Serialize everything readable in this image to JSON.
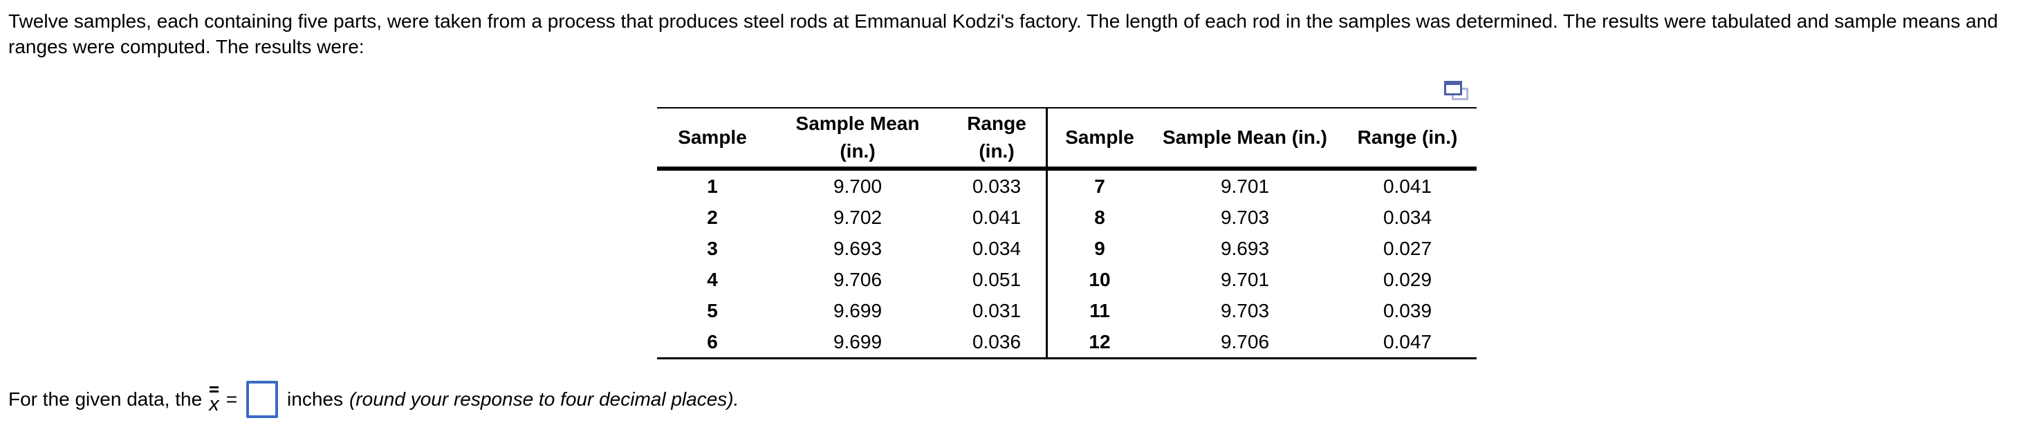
{
  "problem": {
    "intro": "Twelve samples, each containing five parts, were taken from a process that produces steel rods at Emmanual Kodzi's factory. The length of each rod in the samples was determined. The results were tabulated and sample means and ranges were computed. The results were:"
  },
  "table": {
    "left": {
      "headers": {
        "sample": "Sample",
        "mean_line1": "Sample Mean",
        "mean_line2": "(in.)",
        "range_line1": "Range",
        "range_line2": "(in.)"
      },
      "rows": [
        {
          "sample": "1",
          "mean": "9.700",
          "range": "0.033"
        },
        {
          "sample": "2",
          "mean": "9.702",
          "range": "0.041"
        },
        {
          "sample": "3",
          "mean": "9.693",
          "range": "0.034"
        },
        {
          "sample": "4",
          "mean": "9.706",
          "range": "0.051"
        },
        {
          "sample": "5",
          "mean": "9.699",
          "range": "0.031"
        },
        {
          "sample": "6",
          "mean": "9.699",
          "range": "0.036"
        }
      ]
    },
    "right": {
      "headers": {
        "sample": "Sample",
        "mean": "Sample Mean (in.)",
        "range": "Range (in.)"
      },
      "rows": [
        {
          "sample": "7",
          "mean": "9.701",
          "range": "0.041"
        },
        {
          "sample": "8",
          "mean": "9.703",
          "range": "0.034"
        },
        {
          "sample": "9",
          "mean": "9.693",
          "range": "0.027"
        },
        {
          "sample": "10",
          "mean": "9.701",
          "range": "0.029"
        },
        {
          "sample": "11",
          "mean": "9.703",
          "range": "0.039"
        },
        {
          "sample": "12",
          "mean": "9.706",
          "range": "0.047"
        }
      ]
    }
  },
  "question": {
    "prefix": "For the given data, the",
    "symbol": "x",
    "equals": "=",
    "answer_value": "",
    "unit": "inches",
    "note": "(round your response to four decimal places)."
  },
  "icons": {
    "popout": "popout-table-icon"
  },
  "colors": {
    "text": "#000000",
    "input_border": "#3b6ac5",
    "icon_dark": "#4f5fa8",
    "icon_light": "#aeb8dc"
  }
}
